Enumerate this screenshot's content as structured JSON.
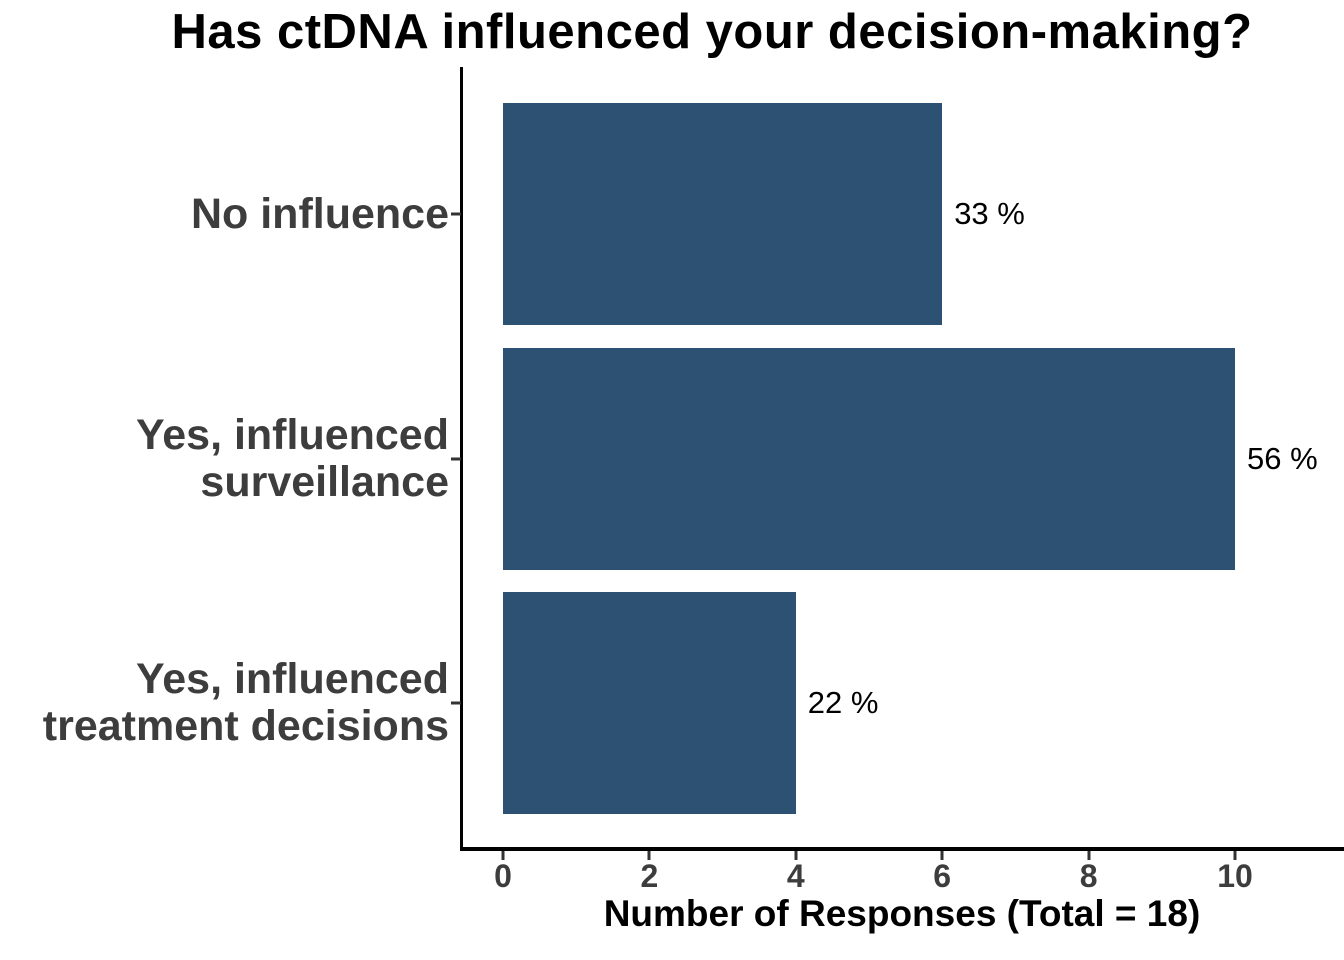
{
  "title": "Has ctDNA influenced your decision-making?",
  "chart_data": {
    "type": "bar",
    "orientation": "horizontal",
    "title": "Has ctDNA influenced your decision-making?",
    "xlabel": "Number of Responses (Total = 18)",
    "ylabel": "",
    "total_responses": 18,
    "categories": [
      "No influence",
      "Yes, influenced\nsurveillance",
      "Yes, influenced\ntreatment decisions"
    ],
    "values": [
      6,
      10,
      4
    ],
    "bar_labels": [
      "33 %",
      "56 %",
      "22 %"
    ],
    "x_ticks": [
      0,
      2,
      4,
      6,
      8,
      10
    ],
    "xlim": [
      0,
      11.5
    ],
    "grid": false,
    "legend": false,
    "bar_color": "#2C5173",
    "label_color": "#3d3d3d",
    "text_color": "#000000",
    "background": "#FFFFFF"
  }
}
